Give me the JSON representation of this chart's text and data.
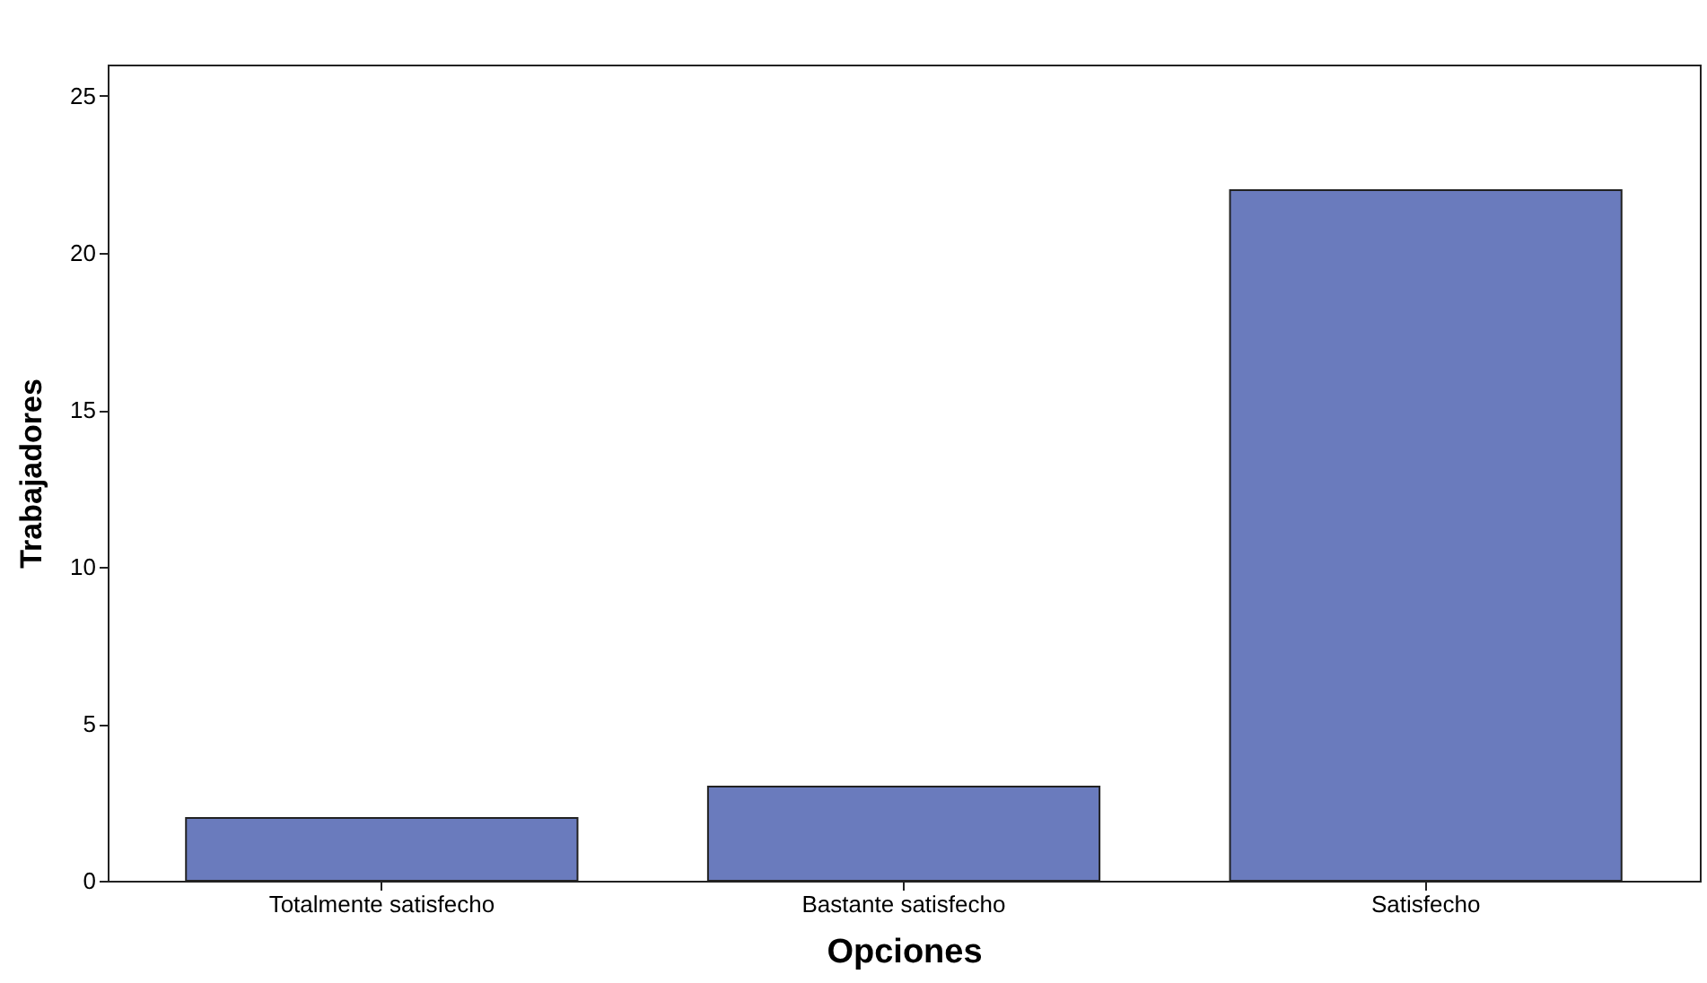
{
  "chart_data": {
    "type": "bar",
    "xlabel": "Opciones",
    "ylabel": "Trabajadores",
    "categories": [
      "Totalmente satisfecho",
      "Bastante satisfecho",
      "Satisfecho"
    ],
    "values": [
      2,
      3,
      22
    ],
    "color": "#6a7bbd",
    "ylim": [
      0,
      26
    ],
    "yticks": [
      0,
      5,
      10,
      15,
      20,
      25
    ]
  }
}
